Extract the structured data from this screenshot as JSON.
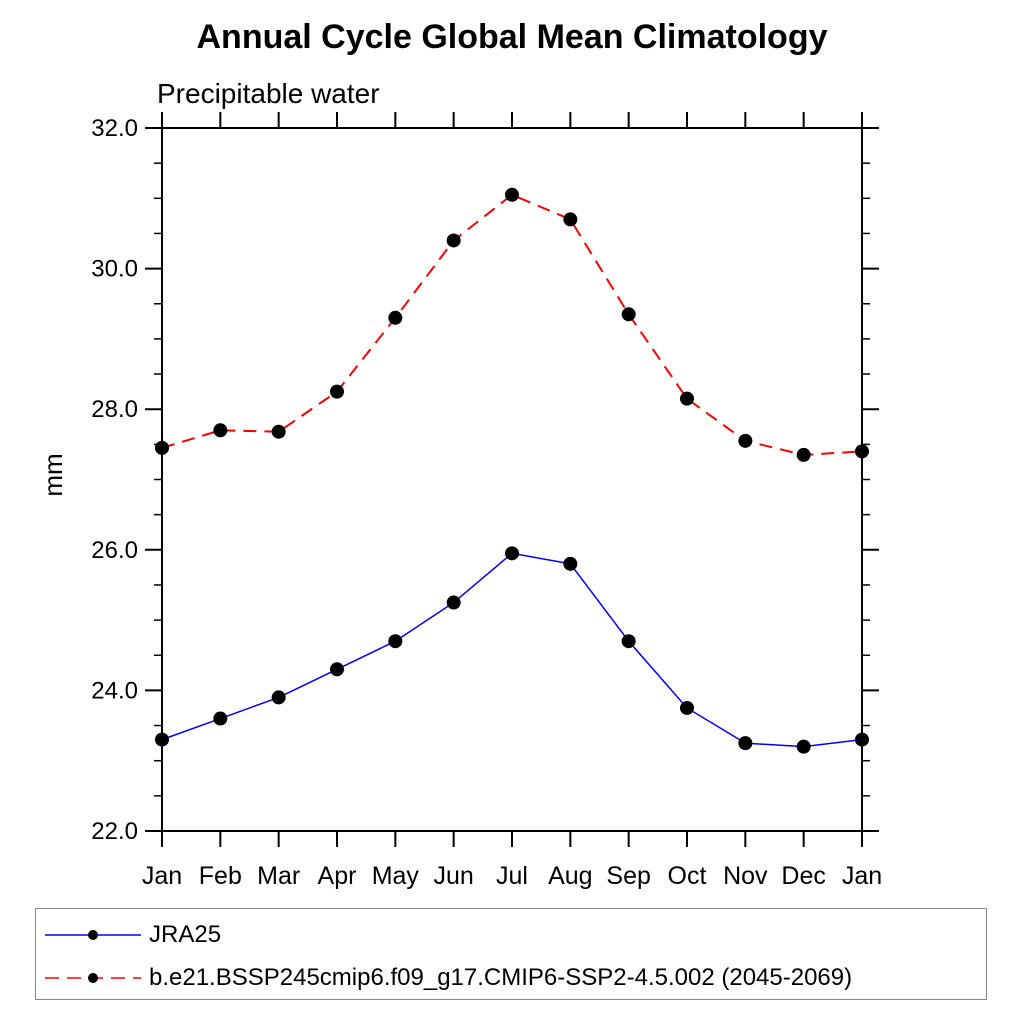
{
  "chart_data": {
    "type": "line",
    "title": "Annual Cycle Global Mean Climatology",
    "subtitle": "Precipitable water",
    "ylabel": "mm",
    "xlabel": "",
    "categories": [
      "Jan",
      "Feb",
      "Mar",
      "Apr",
      "May",
      "Jun",
      "Jul",
      "Aug",
      "Sep",
      "Oct",
      "Nov",
      "Dec",
      "Jan"
    ],
    "ylim": [
      22.0,
      32.0
    ],
    "y_major_ticks": [
      22.0,
      24.0,
      26.0,
      28.0,
      30.0,
      32.0
    ],
    "y_tick_labels": [
      "22.0",
      "24.0",
      "26.0",
      "28.0",
      "30.0",
      "32.0"
    ],
    "y_minor_step": 0.5,
    "grid": "off",
    "legend_position": "bottom",
    "marker": {
      "shape": "circle",
      "color": "#000000"
    },
    "series": [
      {
        "name": "JRA25",
        "color": "#0000ff",
        "style": "solid",
        "values": [
          23.3,
          23.6,
          23.9,
          24.3,
          24.7,
          25.25,
          25.95,
          25.8,
          24.7,
          23.75,
          23.25,
          23.2,
          23.3
        ]
      },
      {
        "name": "b.e21.BSSP245cmip6.f09_g17.CMIP6-SSP2-4.5.002 (2045-2069)",
        "color": "#ff0000",
        "style": "dashed",
        "values": [
          27.45,
          27.7,
          27.68,
          28.25,
          29.3,
          30.4,
          31.05,
          30.7,
          29.35,
          28.15,
          27.55,
          27.35,
          27.4
        ]
      }
    ]
  },
  "legend": {
    "entries": [
      {
        "label": "JRA25"
      },
      {
        "label": "b.e21.BSSP245cmip6.f09_g17.CMIP6-SSP2-4.5.002 (2045-2069)"
      }
    ],
    "border_color": "#888888"
  },
  "colors": {
    "axis": "#000000",
    "background": "#ffffff",
    "text": "#000000"
  }
}
